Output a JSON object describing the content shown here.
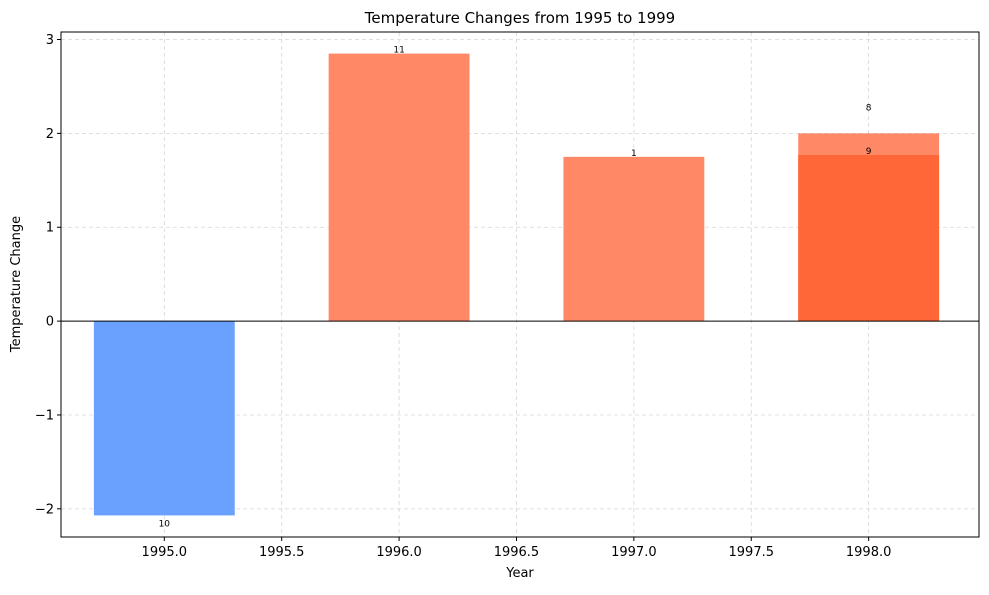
{
  "chart_data": {
    "type": "bar",
    "title": "Temperature Changes from 1995 to 1999",
    "xlabel": "Year",
    "ylabel": "Temperature Change",
    "xlim": [
      1994.56,
      1998.47
    ],
    "ylim": [
      -2.3,
      3.08
    ],
    "x_ticks": [
      1995.0,
      1995.5,
      1996.0,
      1996.5,
      1997.0,
      1997.5,
      1998.0
    ],
    "x_tick_labels": [
      "1995.0",
      "1995.5",
      "1996.0",
      "1996.5",
      "1997.0",
      "1997.5",
      "1998.0"
    ],
    "y_ticks": [
      -2,
      -1,
      0,
      1,
      2,
      3
    ],
    "y_tick_labels": [
      "−2",
      "−1",
      "0",
      "1",
      "2",
      "3"
    ],
    "grid": true,
    "bar_width": 0.6,
    "bars": [
      {
        "x": 1995,
        "value": -2.07,
        "label": "10",
        "color": "#6aa1ff"
      },
      {
        "x": 1996,
        "value": 2.85,
        "label": "11",
        "color": "#ff8966"
      },
      {
        "x": 1997,
        "value": 1.75,
        "label": "1",
        "color": "#ff8966"
      },
      {
        "x": 1998,
        "value": 2.0,
        "label": "8",
        "color": "#ff8966"
      },
      {
        "x": 1998,
        "value": 1.77,
        "label": "9",
        "color": "#ff6638"
      }
    ],
    "zero_line": true
  }
}
